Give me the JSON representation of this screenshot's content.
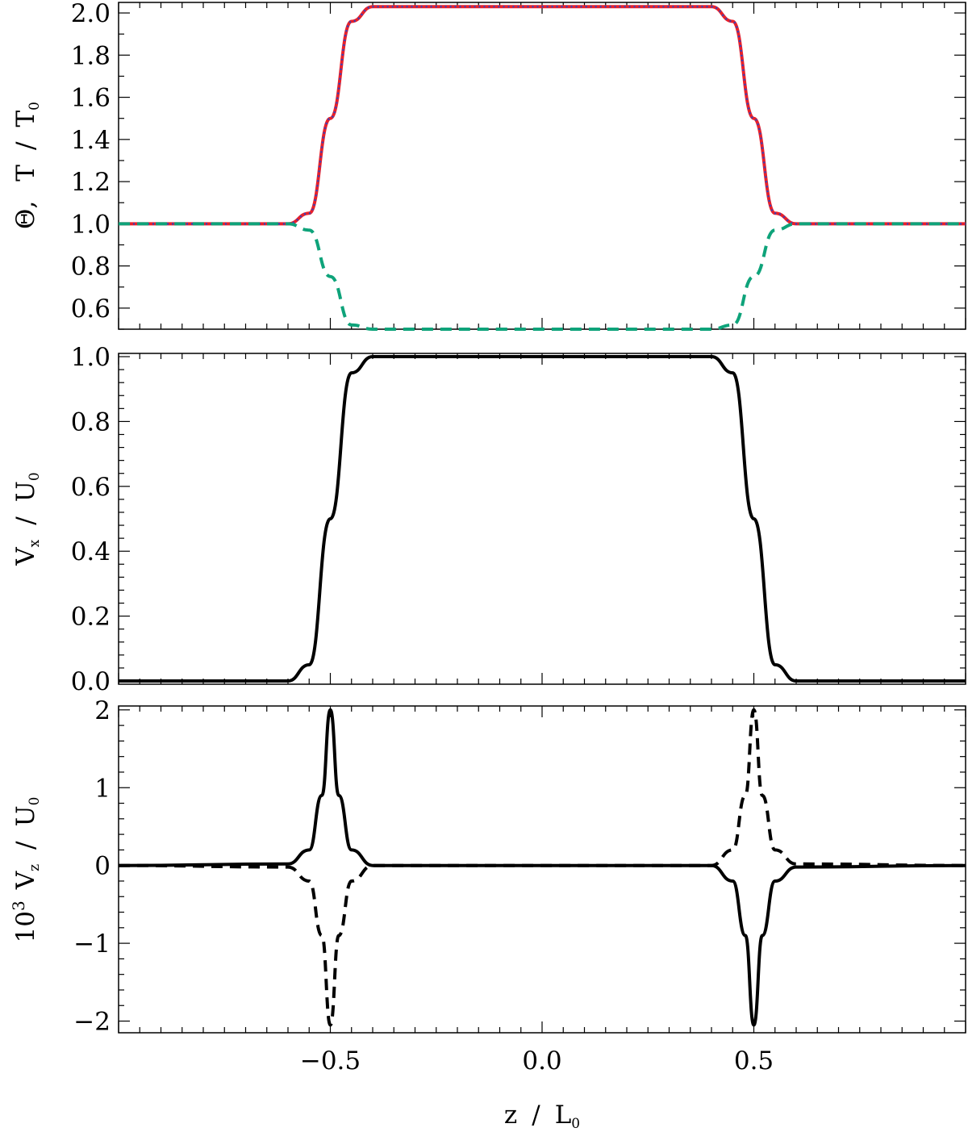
{
  "chart_data": [
    {
      "type": "line",
      "ylabel": "Θ,  T / T0",
      "ylabel_parts": {
        "theta": "Θ,",
        "t": "T",
        "slash": "/",
        "t0": "T",
        "t0_sub": "0"
      },
      "xlim": [
        -1,
        1
      ],
      "ylim": [
        0.5,
        2.05
      ],
      "yticks": [
        0.6,
        0.8,
        1.0,
        1.2,
        1.4,
        1.6,
        1.8,
        2.0
      ],
      "ytick_labels": [
        "0.6",
        "0.8",
        "1.0",
        "1.2",
        "1.4",
        "1.6",
        "1.8",
        "2.0"
      ],
      "legend": "none",
      "series": [
        {
          "role": "temperature T/T0",
          "color": "#e8202a",
          "style": "solid",
          "x": [
            -1.0,
            -0.6,
            -0.55,
            -0.5,
            -0.45,
            -0.4,
            0.0,
            0.4,
            0.45,
            0.5,
            0.55,
            0.6,
            1.0
          ],
          "y": [
            1.0,
            1.0,
            1.05,
            1.5,
            1.96,
            2.03,
            2.03,
            2.03,
            1.96,
            1.5,
            1.05,
            1.0,
            1.0
          ]
        },
        {
          "role": "overlay on temperature",
          "color": "#3344c0",
          "style": "dotted",
          "x": [
            -1.0,
            -0.6,
            -0.55,
            -0.5,
            -0.45,
            -0.4,
            0.0,
            0.4,
            0.45,
            0.5,
            0.55,
            0.6,
            1.0
          ],
          "y": [
            1.0,
            1.0,
            1.05,
            1.5,
            1.96,
            2.03,
            2.03,
            2.03,
            1.96,
            1.5,
            1.05,
            1.0,
            1.0
          ]
        },
        {
          "role": "Theta",
          "color": "#0ea37a",
          "style": "dashed",
          "x": [
            -1.0,
            -0.6,
            -0.55,
            -0.5,
            -0.45,
            -0.4,
            0.0,
            0.4,
            0.45,
            0.5,
            0.55,
            0.6,
            1.0
          ],
          "y": [
            1.0,
            1.0,
            0.97,
            0.75,
            0.52,
            0.5,
            0.5,
            0.5,
            0.52,
            0.75,
            0.97,
            1.0,
            1.0
          ]
        }
      ]
    },
    {
      "type": "line",
      "ylabel": "Vx / U0",
      "ylabel_parts": {
        "v": "V",
        "v_sub": "x",
        "slash": "/",
        "u": "U",
        "u_sub": "0"
      },
      "xlim": [
        -1,
        1
      ],
      "ylim": [
        -0.01,
        1.01
      ],
      "yticks": [
        0.0,
        0.2,
        0.4,
        0.6,
        0.8,
        1.0
      ],
      "ytick_labels": [
        "0.0",
        "0.2",
        "0.4",
        "0.6",
        "0.8",
        "1.0"
      ],
      "legend": "none",
      "series": [
        {
          "role": "Vx",
          "color": "#000000",
          "style": "solid",
          "x": [
            -1.0,
            -0.6,
            -0.55,
            -0.5,
            -0.45,
            -0.4,
            0.0,
            0.4,
            0.45,
            0.5,
            0.55,
            0.6,
            1.0
          ],
          "y": [
            0.0,
            0.0,
            0.05,
            0.5,
            0.95,
            1.0,
            1.0,
            1.0,
            0.95,
            0.5,
            0.05,
            0.0,
            0.0
          ]
        }
      ]
    },
    {
      "type": "line",
      "ylabel": "10³ Vz / U0",
      "ylabel_parts": {
        "ten": "10",
        "ten_sup": "3",
        "v": "V",
        "v_sub": "z",
        "slash": "/",
        "u": "U",
        "u_sub": "0"
      },
      "xlabel": "z / L0",
      "xlabel_parts": {
        "z": "z",
        "slash": "/",
        "l": "L",
        "l_sub": "0"
      },
      "xlim": [
        -1,
        1
      ],
      "ylim": [
        -2.15,
        2.05
      ],
      "yticks": [
        -2,
        -1,
        0,
        1,
        2
      ],
      "ytick_labels": [
        "−2",
        "−1",
        "0",
        "1",
        "2"
      ],
      "xticks": [
        -0.5,
        0.0,
        0.5
      ],
      "xtick_labels": [
        "−0.5",
        "0.0",
        "0.5"
      ],
      "legend": "none",
      "series": [
        {
          "role": "Vz solid",
          "color": "#000000",
          "style": "solid",
          "x": [
            -1.0,
            -0.6,
            -0.55,
            -0.52,
            -0.5,
            -0.48,
            -0.45,
            -0.4,
            0.0,
            0.4,
            0.45,
            0.48,
            0.5,
            0.52,
            0.55,
            0.6,
            1.0
          ],
          "y": [
            0.0,
            0.02,
            0.2,
            0.9,
            2.0,
            0.9,
            0.2,
            0.0,
            0.0,
            0.0,
            -0.2,
            -0.9,
            -2.05,
            -0.9,
            -0.2,
            -0.02,
            0.0
          ]
        },
        {
          "role": "Vz dashed",
          "color": "#000000",
          "style": "dashed",
          "x": [
            -1.0,
            -0.6,
            -0.55,
            -0.52,
            -0.5,
            -0.48,
            -0.45,
            -0.4,
            0.0,
            0.4,
            0.45,
            0.48,
            0.5,
            0.52,
            0.55,
            0.6,
            1.0
          ],
          "y": [
            0.0,
            -0.02,
            -0.2,
            -0.9,
            -2.05,
            -0.9,
            -0.2,
            0.0,
            0.0,
            0.0,
            0.2,
            0.9,
            2.0,
            0.9,
            0.2,
            0.02,
            0.0
          ]
        }
      ]
    }
  ]
}
